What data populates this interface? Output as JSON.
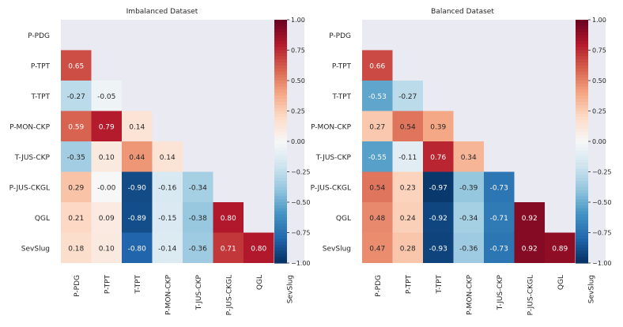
{
  "chart_data": [
    {
      "type": "heatmap",
      "title": "Imbalanced Dataset",
      "rows": [
        "P-PDG",
        "P-TPT",
        "T-TPT",
        "P-MON-CKP",
        "T-JUS-CKP",
        "P-JUS-CKGL",
        "QGL",
        "SevSlug"
      ],
      "cols": [
        "P-PDG",
        "P-TPT",
        "T-TPT",
        "P-MON-CKP",
        "T-JUS-CKP",
        "P-JUS-CKGL",
        "QGL",
        "SevSlug"
      ],
      "mask": "upper triangle incl. diagonal",
      "values": [
        [
          null,
          null,
          null,
          null,
          null,
          null,
          null,
          null
        ],
        [
          0.65,
          null,
          null,
          null,
          null,
          null,
          null,
          null
        ],
        [
          -0.27,
          -0.05,
          null,
          null,
          null,
          null,
          null,
          null
        ],
        [
          0.59,
          0.79,
          0.14,
          null,
          null,
          null,
          null,
          null
        ],
        [
          -0.35,
          0.1,
          0.44,
          0.14,
          null,
          null,
          null,
          null
        ],
        [
          0.29,
          -0.0,
          -0.9,
          -0.16,
          -0.34,
          null,
          null,
          null
        ],
        [
          0.21,
          0.09,
          -0.89,
          -0.15,
          -0.38,
          0.8,
          null,
          null
        ],
        [
          0.18,
          0.1,
          -0.8,
          -0.14,
          -0.36,
          0.71,
          0.8,
          null
        ]
      ],
      "labels": [
        [
          null,
          null,
          null,
          null,
          null,
          null,
          null,
          null
        ],
        [
          "0.65",
          null,
          null,
          null,
          null,
          null,
          null,
          null
        ],
        [
          "-0.27",
          "-0.05",
          null,
          null,
          null,
          null,
          null,
          null
        ],
        [
          "0.59",
          "0.79",
          "0.14",
          null,
          null,
          null,
          null,
          null
        ],
        [
          "-0.35",
          "0.10",
          "0.44",
          "0.14",
          null,
          null,
          null,
          null
        ],
        [
          "0.29",
          "-0.00",
          "-0.90",
          "-0.16",
          "-0.34",
          null,
          null,
          null
        ],
        [
          "0.21",
          "0.09",
          "-0.89",
          "-0.15",
          "-0.38",
          "0.80",
          null,
          null
        ],
        [
          "0.18",
          "0.10",
          "-0.80",
          "-0.14",
          "-0.36",
          "0.71",
          "0.80",
          null
        ]
      ],
      "colorbar": {
        "colormap": "RdBu_r",
        "range": [
          -1.0,
          1.0
        ],
        "ticks": [
          1.0,
          0.75,
          0.5,
          0.25,
          0.0,
          -0.25,
          -0.5,
          -0.75,
          -1.0
        ],
        "tick_labels": [
          "1.00",
          "0.75",
          "0.50",
          "0.25",
          "0.00",
          "−0.25",
          "−0.50",
          "−0.75",
          "−1.00"
        ]
      }
    },
    {
      "type": "heatmap",
      "title": "Balanced Dataset",
      "rows": [
        "P-PDG",
        "P-TPT",
        "T-TPT",
        "P-MON-CKP",
        "T-JUS-CKP",
        "P-JUS-CKGL",
        "QGL",
        "SevSlug"
      ],
      "cols": [
        "P-PDG",
        "P-TPT",
        "T-TPT",
        "P-MON-CKP",
        "T-JUS-CKP",
        "P-JUS-CKGL",
        "QGL",
        "SevSlug"
      ],
      "mask": "upper triangle incl. diagonal",
      "values": [
        [
          null,
          null,
          null,
          null,
          null,
          null,
          null,
          null
        ],
        [
          0.66,
          null,
          null,
          null,
          null,
          null,
          null,
          null
        ],
        [
          -0.53,
          -0.27,
          null,
          null,
          null,
          null,
          null,
          null
        ],
        [
          0.27,
          0.54,
          0.39,
          null,
          null,
          null,
          null,
          null
        ],
        [
          -0.55,
          -0.11,
          0.76,
          0.34,
          null,
          null,
          null,
          null
        ],
        [
          0.54,
          0.23,
          -0.97,
          -0.39,
          -0.73,
          null,
          null,
          null
        ],
        [
          0.48,
          0.24,
          -0.92,
          -0.34,
          -0.71,
          0.92,
          null,
          null
        ],
        [
          0.47,
          0.28,
          -0.93,
          -0.36,
          -0.73,
          0.92,
          0.89,
          null
        ]
      ],
      "labels": [
        [
          null,
          null,
          null,
          null,
          null,
          null,
          null,
          null
        ],
        [
          "0.66",
          null,
          null,
          null,
          null,
          null,
          null,
          null
        ],
        [
          "-0.53",
          "-0.27",
          null,
          null,
          null,
          null,
          null,
          null
        ],
        [
          "0.27",
          "0.54",
          "0.39",
          null,
          null,
          null,
          null,
          null
        ],
        [
          "-0.55",
          "-0.11",
          "0.76",
          "0.34",
          null,
          null,
          null,
          null
        ],
        [
          "0.54",
          "0.23",
          "-0.97",
          "-0.39",
          "-0.73",
          null,
          null,
          null
        ],
        [
          "0.48",
          "0.24",
          "-0.92",
          "-0.34",
          "-0.71",
          "0.92",
          null,
          null
        ],
        [
          "0.47",
          "0.28",
          "-0.93",
          "-0.36",
          "-0.73",
          "0.92",
          "0.89",
          null
        ]
      ],
      "colorbar": {
        "colormap": "RdBu_r",
        "range": [
          -1.0,
          1.0
        ],
        "ticks": [
          1.0,
          0.75,
          0.5,
          0.25,
          0.0,
          -0.25,
          -0.5,
          -0.75,
          -1.0
        ],
        "tick_labels": [
          "1.00",
          "0.75",
          "0.50",
          "0.25",
          "0.00",
          "−0.25",
          "−0.50",
          "−0.75",
          "−1.00"
        ]
      }
    }
  ],
  "style": {
    "mask_background": "#eaeaf2",
    "text_dark": "#262626",
    "text_light": "#ffffff"
  }
}
